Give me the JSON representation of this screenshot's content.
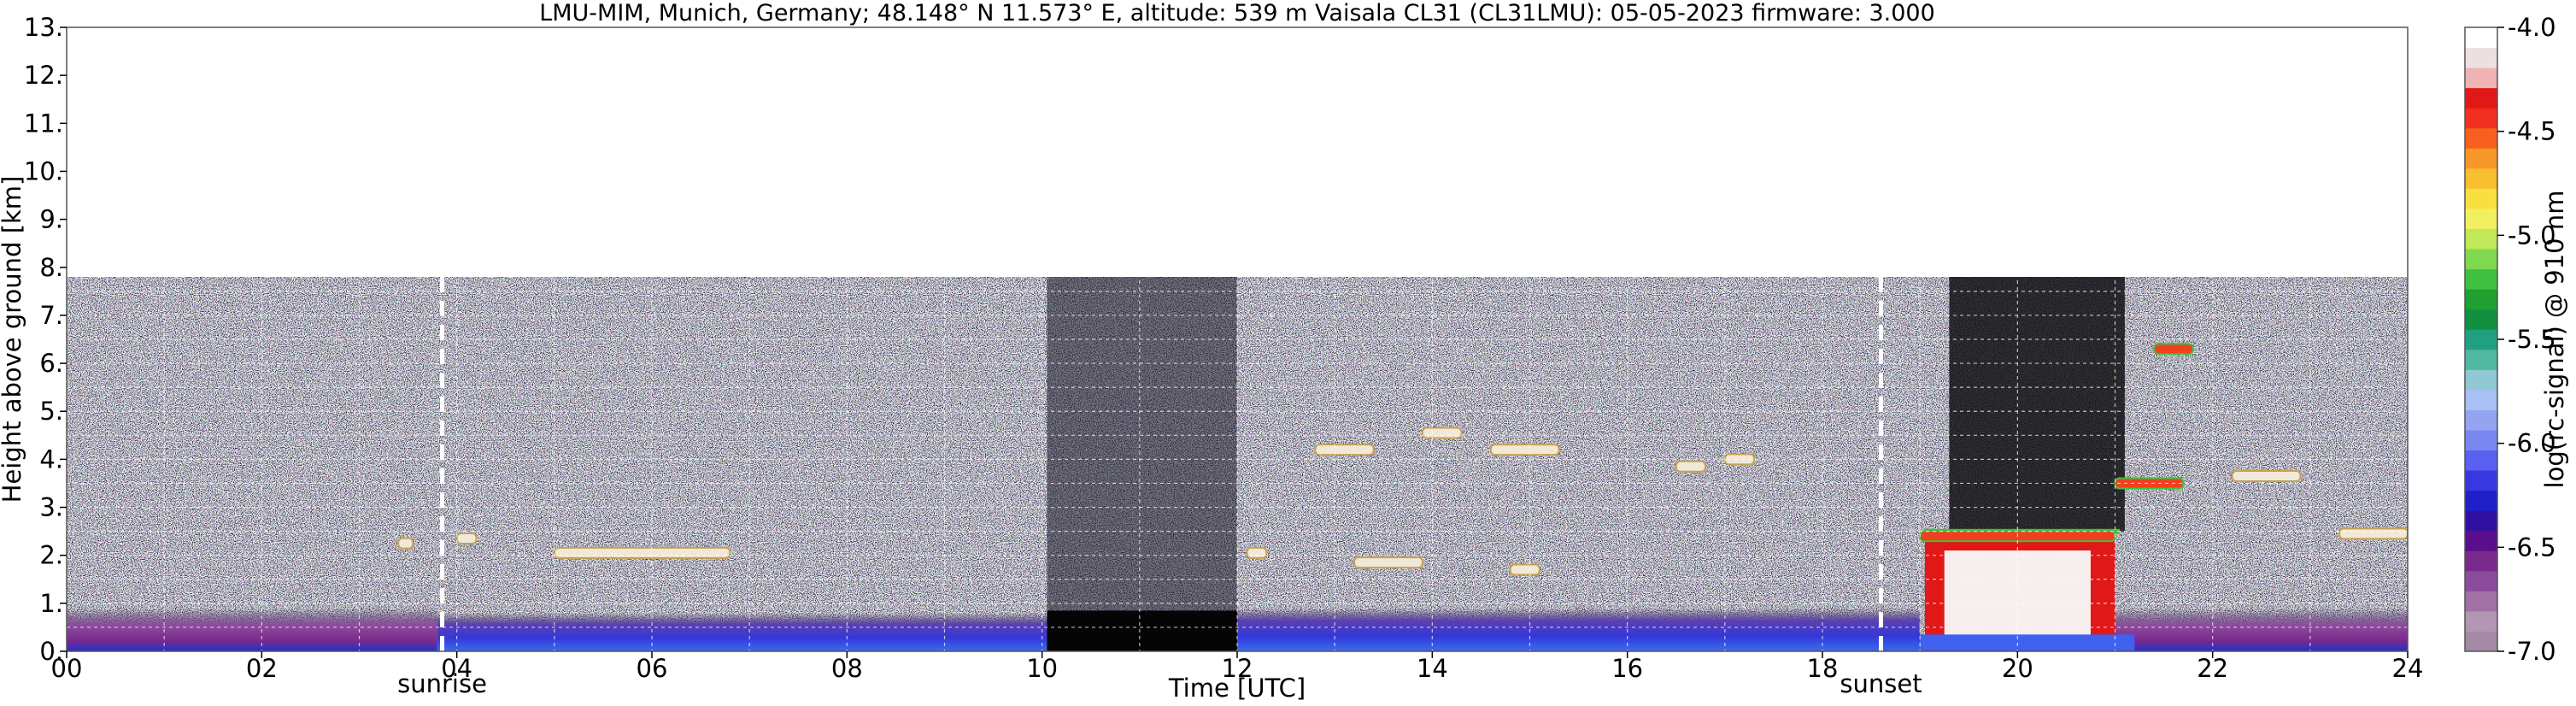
{
  "chart_data": {
    "type": "heatmap",
    "title": "LMU-MIM, Munich, Germany; 48.148° N 11.573° E, altitude: 539 m    Vaisala CL31 (CL31LMU): 05-05-2023    firmware: 3.000",
    "xlabel": "Time [UTC]",
    "ylabel": "Height above ground [km]",
    "xlim": [
      0,
      24
    ],
    "ylim": [
      0,
      13
    ],
    "x_ticks": [
      "00",
      "02",
      "04",
      "06",
      "08",
      "10",
      "12",
      "14",
      "16",
      "18",
      "20",
      "22",
      "24"
    ],
    "y_ticks": [
      "0.",
      "1.",
      "2.",
      "3.",
      "4.",
      "5.",
      "6.",
      "7.",
      "8.",
      "9.",
      "10.",
      "11.",
      "12.",
      "13."
    ],
    "grid": true,
    "data_top_km": 7.8,
    "markers": [
      {
        "label": "sunrise",
        "time": 3.85
      },
      {
        "label": "sunset",
        "time": 18.6
      }
    ],
    "no_data_periods": [
      [
        10.05,
        12.0
      ],
      [
        19.3,
        21.0
      ]
    ],
    "boundary_layer": [
      {
        "t0": 0,
        "t1": 3.8,
        "top": 0.9
      },
      {
        "t0": 3.8,
        "t1": 10.05,
        "top": 0.8
      },
      {
        "t0": 12.0,
        "t1": 19.0,
        "top": 0.9
      },
      {
        "t0": 21.0,
        "t1": 24,
        "top": 0.9
      }
    ],
    "cloud_layers": [
      {
        "t0": 3.4,
        "t1": 3.55,
        "h": 2.25
      },
      {
        "t0": 4.0,
        "t1": 4.2,
        "h": 2.35
      },
      {
        "t0": 5.0,
        "t1": 6.8,
        "h": 2.05
      },
      {
        "t0": 12.1,
        "t1": 12.3,
        "h": 2.05
      },
      {
        "t0": 13.2,
        "t1": 13.9,
        "h": 1.85
      },
      {
        "t0": 14.8,
        "t1": 15.1,
        "h": 1.7
      },
      {
        "t0": 12.8,
        "t1": 13.4,
        "h": 4.2
      },
      {
        "t0": 13.9,
        "t1": 14.3,
        "h": 4.55
      },
      {
        "t0": 14.6,
        "t1": 15.3,
        "h": 4.2
      },
      {
        "t0": 16.5,
        "t1": 16.8,
        "h": 3.85
      },
      {
        "t0": 17.0,
        "t1": 17.3,
        "h": 4.0
      },
      {
        "t0": 19.0,
        "t1": 21.0,
        "h": 2.4
      },
      {
        "t0": 21.0,
        "t1": 21.7,
        "h": 3.5
      },
      {
        "t0": 21.4,
        "t1": 21.8,
        "h": 6.3
      },
      {
        "t0": 22.2,
        "t1": 22.9,
        "h": 3.65
      },
      {
        "t0": 23.3,
        "t1": 24.0,
        "h": 2.45
      }
    ],
    "colorbar": {
      "label": "log(rc-signal) @ 910 nm",
      "range": [
        -7.0,
        -4.0
      ],
      "ticks": [
        "-4.0",
        "-4.5",
        "-5.0",
        "-5.5",
        "-6.0",
        "-6.5",
        "-7.0"
      ],
      "colors": [
        "#a48aa4",
        "#b495b4",
        "#a070a6",
        "#8c4c9c",
        "#7a2a8c",
        "#5a0e8c",
        "#3010a0",
        "#2020c8",
        "#3838e0",
        "#5a60f0",
        "#7888f0",
        "#94a4f0",
        "#a8c0f4",
        "#90c8d4",
        "#50b8a0",
        "#20a080",
        "#109040",
        "#20a030",
        "#40c040",
        "#80d850",
        "#c0e858",
        "#f0f060",
        "#f8e040",
        "#f8c030",
        "#f89828",
        "#f86020",
        "#f03020",
        "#e01818",
        "#f0b4b4",
        "#ece0e0",
        "#ffffff"
      ]
    }
  }
}
